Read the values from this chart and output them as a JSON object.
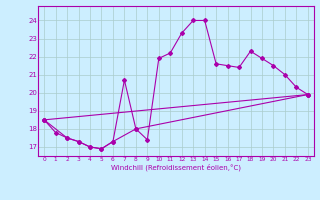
{
  "xlabel": "Windchill (Refroidissement éolien,°C)",
  "bg_color": "#cceeff",
  "line_color": "#aa00aa",
  "grid_color": "#aacccc",
  "xlim": [
    -0.5,
    23.5
  ],
  "ylim": [
    16.5,
    24.8
  ],
  "xticks": [
    0,
    1,
    2,
    3,
    4,
    5,
    6,
    7,
    8,
    9,
    10,
    11,
    12,
    13,
    14,
    15,
    16,
    17,
    18,
    19,
    20,
    21,
    22,
    23
  ],
  "yticks": [
    17,
    18,
    19,
    20,
    21,
    22,
    23,
    24
  ],
  "line1_x": [
    0,
    1,
    2,
    3,
    4,
    5,
    6,
    7,
    8,
    9,
    10,
    11,
    12,
    13,
    14,
    15,
    16,
    17,
    18,
    19,
    20,
    21,
    22,
    23
  ],
  "line1_y": [
    18.5,
    17.8,
    17.5,
    17.3,
    17.0,
    16.9,
    17.3,
    20.7,
    18.0,
    17.4,
    21.9,
    22.2,
    23.3,
    24.0,
    24.0,
    21.6,
    21.5,
    21.4,
    22.3,
    21.9,
    21.5,
    21.0,
    20.3,
    19.9
  ],
  "line2_x": [
    0,
    2,
    3,
    4,
    5,
    6,
    8,
    23
  ],
  "line2_y": [
    18.5,
    17.5,
    17.3,
    17.0,
    16.9,
    17.3,
    18.0,
    19.9
  ],
  "line3_x": [
    0,
    23
  ],
  "line3_y": [
    18.5,
    19.9
  ]
}
